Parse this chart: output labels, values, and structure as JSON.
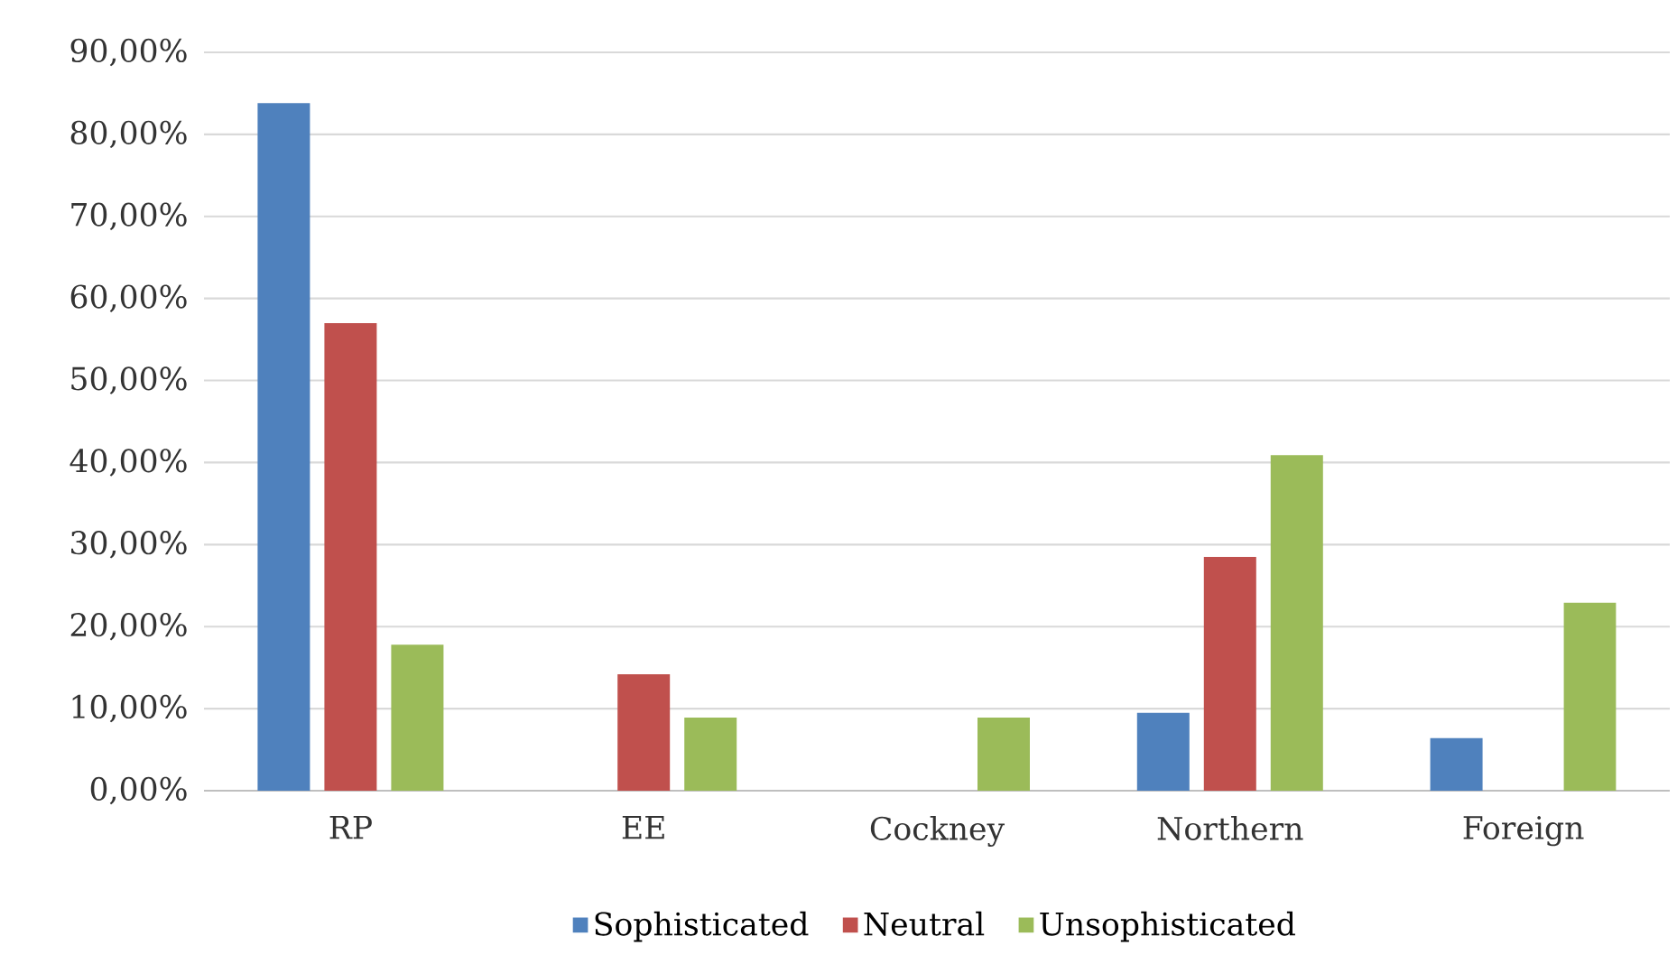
{
  "chart_data": {
    "type": "bar",
    "categories": [
      "RP",
      "EE",
      "Cockney",
      "Northern",
      "Foreign"
    ],
    "series": [
      {
        "name": "Sophisticated",
        "color": "#4f81bd",
        "values": [
          83.8,
          0,
          0,
          9.5,
          6.4
        ]
      },
      {
        "name": "Neutral",
        "color": "#c0504d",
        "values": [
          57.0,
          14.2,
          0,
          28.5,
          0
        ]
      },
      {
        "name": "Unsophisticated",
        "color": "#9bbb59",
        "values": [
          17.8,
          8.9,
          8.9,
          40.9,
          22.9
        ]
      }
    ],
    "ylim": [
      0,
      90
    ],
    "yticks": [
      {
        "value": 0,
        "label": "0,00%"
      },
      {
        "value": 10,
        "label": "10,00%"
      },
      {
        "value": 20,
        "label": "20,00%"
      },
      {
        "value": 30,
        "label": "30,00%"
      },
      {
        "value": 40,
        "label": "40,00%"
      },
      {
        "value": 50,
        "label": "50,00%"
      },
      {
        "value": 60,
        "label": "60,00%"
      },
      {
        "value": 70,
        "label": "70,00%"
      },
      {
        "value": 80,
        "label": "80,00%"
      },
      {
        "value": 90,
        "label": "90,00%"
      }
    ],
    "grid": "y",
    "legend": "bottom"
  }
}
